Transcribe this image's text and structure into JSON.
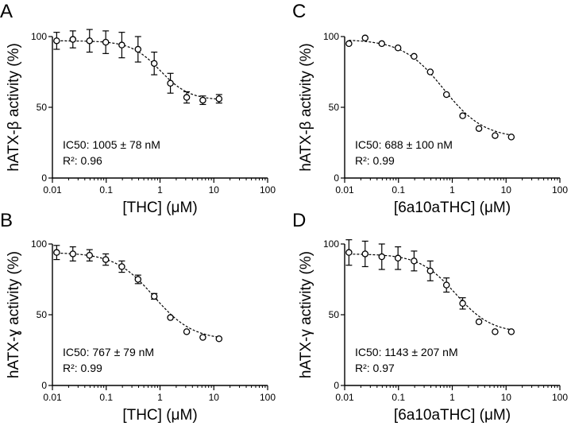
{
  "chart_data": [
    {
      "panel": "A",
      "type": "scatter",
      "title": "",
      "xlabel": "[THC] (μM)",
      "ylabel": "hATX-β activity (%)",
      "xscale": "log",
      "xlim": [
        0.01,
        100
      ],
      "ylim": [
        0,
        100
      ],
      "xticks": [
        0.01,
        0.1,
        1,
        10,
        100
      ],
      "xtick_labels": [
        "0.01",
        "0.1",
        "1",
        "10",
        "100"
      ],
      "yticks": [
        0,
        50,
        100
      ],
      "ytick_labels": [
        "0",
        "50",
        "100"
      ],
      "x": [
        0.012,
        0.024,
        0.049,
        0.098,
        0.195,
        0.39,
        0.78,
        1.56,
        3.13,
        6.25,
        12.5
      ],
      "y": [
        97,
        98,
        97,
        96,
        94,
        91,
        81,
        67,
        57,
        55,
        56
      ],
      "error": [
        6,
        6,
        8,
        8,
        9,
        9,
        8,
        7,
        4,
        3,
        3
      ],
      "fit": {
        "top": 97,
        "bottom": 55,
        "ic50_uM": 1.005,
        "hill": 1.6
      },
      "annotations": [
        "IC50: 1005 ± 78 nM",
        "R²: 0.96"
      ]
    },
    {
      "panel": "C",
      "type": "scatter",
      "title": "",
      "xlabel": "[6a10aTHC] (μM)",
      "ylabel": "hATX-β activity (%)",
      "xscale": "log",
      "xlim": [
        0.01,
        100
      ],
      "ylim": [
        0,
        100
      ],
      "xticks": [
        0.01,
        0.1,
        1,
        10,
        100
      ],
      "xtick_labels": [
        "0.01",
        "0.1",
        "1",
        "10",
        "100"
      ],
      "yticks": [
        0,
        50,
        100
      ],
      "ytick_labels": [
        "0",
        "50",
        "100"
      ],
      "x": [
        0.012,
        0.024,
        0.049,
        0.098,
        0.195,
        0.39,
        0.78,
        1.56,
        3.13,
        6.25,
        12.5
      ],
      "y": [
        95,
        99,
        95,
        92,
        86,
        75,
        59,
        44,
        35,
        30,
        29
      ],
      "error": [
        0,
        0,
        0,
        0,
        0,
        0,
        0,
        0,
        0,
        0,
        0
      ],
      "fit": {
        "top": 98,
        "bottom": 28,
        "ic50_uM": 0.688,
        "hill": 1.15
      },
      "annotations": [
        "IC50: 688 ± 100 nM",
        "R²: 0.99"
      ]
    },
    {
      "panel": "B",
      "type": "scatter",
      "title": "",
      "xlabel": "[THC] (μM)",
      "ylabel": "hATX-ɣ activity (%)",
      "xscale": "log",
      "xlim": [
        0.01,
        100
      ],
      "ylim": [
        0,
        100
      ],
      "xticks": [
        0.01,
        0.1,
        1,
        10,
        100
      ],
      "xtick_labels": [
        "0.01",
        "0.1",
        "1",
        "10",
        "100"
      ],
      "yticks": [
        0,
        50,
        100
      ],
      "ytick_labels": [
        "0",
        "50",
        "100"
      ],
      "x": [
        0.012,
        0.024,
        0.049,
        0.098,
        0.195,
        0.39,
        0.78,
        1.56,
        3.13,
        6.25,
        12.5
      ],
      "y": [
        94,
        93,
        92,
        89,
        84,
        75,
        63,
        48,
        38,
        34,
        33
      ],
      "error": [
        5,
        5,
        4,
        4,
        4,
        3,
        2,
        0,
        0,
        0,
        0
      ],
      "fit": {
        "top": 94,
        "bottom": 32,
        "ic50_uM": 0.767,
        "hill": 1.2
      },
      "annotations": [
        "IC50: 767 ± 79 nM",
        "R²: 0.99"
      ]
    },
    {
      "panel": "D",
      "type": "scatter",
      "title": "",
      "xlabel": "[6a10aTHC] (μM)",
      "ylabel": "hATX-γ activity (%)",
      "xscale": "log",
      "xlim": [
        0.01,
        100
      ],
      "ylim": [
        0,
        100
      ],
      "xticks": [
        0.01,
        0.1,
        1,
        10,
        100
      ],
      "xtick_labels": [
        "0.01",
        "0.1",
        "1",
        "10",
        "100"
      ],
      "yticks": [
        0,
        50,
        100
      ],
      "ytick_labels": [
        "0",
        "50",
        "100"
      ],
      "x": [
        0.012,
        0.024,
        0.049,
        0.098,
        0.195,
        0.39,
        0.78,
        1.56,
        3.13,
        6.25,
        12.5
      ],
      "y": [
        94,
        93,
        91,
        90,
        88,
        81,
        71,
        58,
        45,
        38,
        38
      ],
      "error": [
        9,
        9,
        9,
        8,
        7,
        7,
        5,
        4,
        0,
        0,
        0
      ],
      "fit": {
        "top": 93,
        "bottom": 37,
        "ic50_uM": 1.143,
        "hill": 1.3
      },
      "annotations": [
        "IC50: 1143 ± 207 nM",
        "R²: 0.97"
      ]
    }
  ]
}
